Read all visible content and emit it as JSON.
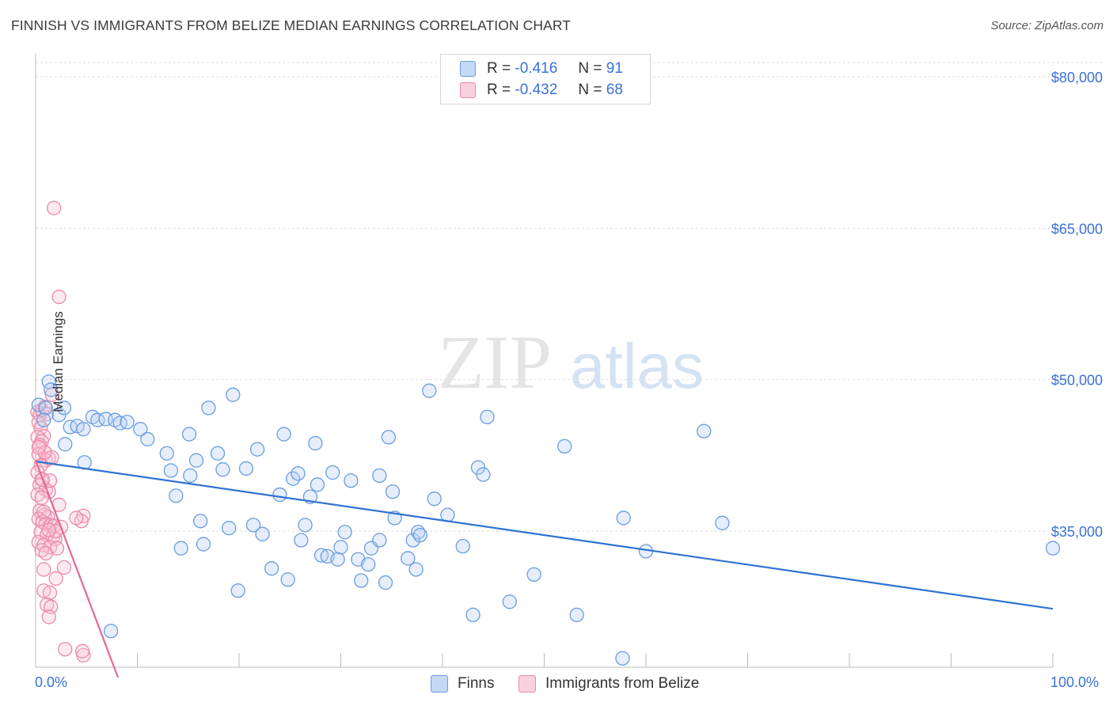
{
  "title": "FINNISH VS IMMIGRANTS FROM BELIZE MEDIAN EARNINGS CORRELATION CHART",
  "source": "Source: ZipAtlas.com",
  "watermark": {
    "part1": "ZIP",
    "part2": "atlas"
  },
  "colors": {
    "blue": "#6a9de0",
    "blue_line": "#2f72d4",
    "pink": "#ea8aaa",
    "pink_line": "#e4698f",
    "axis_label": "#3a72d8",
    "grid": "#dddddd"
  },
  "legend": {
    "rows": [
      {
        "r_label": "R =",
        "r_value": "-0.416",
        "n_label": "N =",
        "n_value": "91",
        "color": "blue"
      },
      {
        "r_label": "R =",
        "r_value": "-0.432",
        "n_label": "N =",
        "n_value": "68",
        "color": "pink"
      }
    ]
  },
  "bottom_legend": {
    "finns": "Finns",
    "belize": "Immigrants from Belize"
  },
  "chart_data": {
    "type": "scatter",
    "xlabel": "",
    "ylabel": "Median Earnings",
    "xlim": [
      0,
      100
    ],
    "ylim": [
      20000,
      82000
    ],
    "x_tick_labels": {
      "left": "0.0%",
      "right": "100.0%"
    },
    "y_ticks": [
      {
        "value": 80000,
        "label": "$80,000"
      },
      {
        "value": 65000,
        "label": "$65,000"
      },
      {
        "value": 50000,
        "label": "$50,000"
      },
      {
        "value": 35000,
        "label": "$35,000"
      }
    ],
    "series": [
      {
        "name": "Finns",
        "color": "blue",
        "trend": {
          "x0": 0,
          "y0": 41900,
          "x1": 100,
          "y1": 27300
        },
        "points": [
          [
            0.3,
            47500
          ],
          [
            1.0,
            47200
          ],
          [
            1.3,
            49800
          ],
          [
            0.8,
            46000
          ],
          [
            1.5,
            49000
          ],
          [
            2.3,
            46500
          ],
          [
            2.8,
            47200
          ],
          [
            3.4,
            45300
          ],
          [
            4.1,
            45400
          ],
          [
            4.7,
            45100
          ],
          [
            2.9,
            43600
          ],
          [
            4.8,
            41800
          ],
          [
            5.6,
            46300
          ],
          [
            6.1,
            46000
          ],
          [
            6.9,
            46100
          ],
          [
            7.8,
            46000
          ],
          [
            8.3,
            45700
          ],
          [
            9.0,
            45800
          ],
          [
            10.3,
            45100
          ],
          [
            11.0,
            44100
          ],
          [
            12.9,
            42700
          ],
          [
            13.3,
            41000
          ],
          [
            13.8,
            38500
          ],
          [
            14.3,
            33300
          ],
          [
            15.1,
            44600
          ],
          [
            15.2,
            40500
          ],
          [
            15.8,
            42000
          ],
          [
            16.2,
            36000
          ],
          [
            16.5,
            33700
          ],
          [
            17.0,
            47200
          ],
          [
            17.9,
            42700
          ],
          [
            18.4,
            41100
          ],
          [
            19.0,
            35300
          ],
          [
            19.4,
            48500
          ],
          [
            19.9,
            29100
          ],
          [
            20.7,
            41200
          ],
          [
            21.4,
            35600
          ],
          [
            21.8,
            43100
          ],
          [
            22.3,
            34700
          ],
          [
            23.2,
            31300
          ],
          [
            24.0,
            38600
          ],
          [
            24.4,
            44600
          ],
          [
            24.8,
            30200
          ],
          [
            25.3,
            40200
          ],
          [
            25.8,
            40700
          ],
          [
            26.1,
            34100
          ],
          [
            26.5,
            35600
          ],
          [
            27.0,
            38400
          ],
          [
            27.5,
            43700
          ],
          [
            27.7,
            39600
          ],
          [
            28.1,
            32600
          ],
          [
            28.7,
            32500
          ],
          [
            29.2,
            40800
          ],
          [
            29.7,
            32200
          ],
          [
            30.0,
            33400
          ],
          [
            30.4,
            34900
          ],
          [
            31.0,
            40000
          ],
          [
            31.7,
            32200
          ],
          [
            32.0,
            30100
          ],
          [
            32.7,
            31700
          ],
          [
            33.0,
            33300
          ],
          [
            33.8,
            40500
          ],
          [
            33.8,
            34100
          ],
          [
            34.4,
            29900
          ],
          [
            34.7,
            44300
          ],
          [
            35.1,
            38900
          ],
          [
            35.3,
            36300
          ],
          [
            36.6,
            32300
          ],
          [
            37.1,
            34100
          ],
          [
            37.4,
            31200
          ],
          [
            37.6,
            34900
          ],
          [
            37.8,
            34600
          ],
          [
            38.7,
            48900
          ],
          [
            39.2,
            38200
          ],
          [
            40.5,
            36600
          ],
          [
            42.0,
            33500
          ],
          [
            43.0,
            26700
          ],
          [
            43.5,
            41300
          ],
          [
            44.0,
            40600
          ],
          [
            44.4,
            46300
          ],
          [
            46.6,
            28000
          ],
          [
            49.0,
            30700
          ],
          [
            52.0,
            43400
          ],
          [
            53.2,
            26700
          ],
          [
            57.7,
            22400
          ],
          [
            57.8,
            36300
          ],
          [
            60.0,
            33000
          ],
          [
            65.7,
            44900
          ],
          [
            67.5,
            35800
          ],
          [
            100.0,
            33300
          ],
          [
            7.4,
            25100
          ]
        ]
      },
      {
        "name": "Immigrants from Belize",
        "color": "pink",
        "trend": {
          "x0": 0,
          "y0": 42000,
          "x1": 8.1,
          "y1": 20500
        },
        "points": [
          [
            0.2,
            46800
          ],
          [
            0.4,
            46500
          ],
          [
            0.6,
            47000
          ],
          [
            0.9,
            47300
          ],
          [
            1.1,
            46600
          ],
          [
            0.3,
            45800
          ],
          [
            0.5,
            45200
          ],
          [
            0.8,
            44400
          ],
          [
            0.2,
            44300
          ],
          [
            0.6,
            43900
          ],
          [
            0.4,
            43500
          ],
          [
            0.9,
            42800
          ],
          [
            0.3,
            42600
          ],
          [
            1.0,
            42000
          ],
          [
            1.3,
            42200
          ],
          [
            1.6,
            42300
          ],
          [
            0.5,
            41500
          ],
          [
            0.2,
            40800
          ],
          [
            0.7,
            40100
          ],
          [
            0.4,
            39600
          ],
          [
            1.0,
            39100
          ],
          [
            1.3,
            38900
          ],
          [
            0.2,
            38600
          ],
          [
            0.6,
            38300
          ],
          [
            2.3,
            37600
          ],
          [
            0.4,
            37000
          ],
          [
            0.9,
            36600
          ],
          [
            1.2,
            36400
          ],
          [
            0.3,
            36200
          ],
          [
            0.7,
            35900
          ],
          [
            1.0,
            35700
          ],
          [
            1.5,
            35600
          ],
          [
            1.8,
            35500
          ],
          [
            2.5,
            35400
          ],
          [
            0.5,
            34900
          ],
          [
            1.1,
            34600
          ],
          [
            1.7,
            34400
          ],
          [
            1.9,
            34200
          ],
          [
            0.3,
            33900
          ],
          [
            0.8,
            33600
          ],
          [
            1.4,
            33400
          ],
          [
            2.1,
            33300
          ],
          [
            0.6,
            33100
          ],
          [
            1.0,
            32800
          ],
          [
            2.8,
            31400
          ],
          [
            0.8,
            31200
          ],
          [
            0.8,
            29100
          ],
          [
            1.4,
            28900
          ],
          [
            1.1,
            27700
          ],
          [
            1.5,
            27500
          ],
          [
            1.3,
            26500
          ],
          [
            2.9,
            23300
          ],
          [
            4.7,
            22700
          ],
          [
            4.6,
            23100
          ],
          [
            1.8,
            67000
          ],
          [
            2.3,
            58200
          ],
          [
            1.6,
            48500
          ],
          [
            4.7,
            36500
          ],
          [
            4.5,
            36000
          ],
          [
            2.0,
            30300
          ],
          [
            0.6,
            40100
          ],
          [
            0.9,
            42800
          ],
          [
            1.4,
            40000
          ],
          [
            0.3,
            43300
          ],
          [
            2.0,
            35000
          ],
          [
            1.3,
            35100
          ],
          [
            0.8,
            36900
          ],
          [
            4.0,
            36300
          ]
        ]
      }
    ]
  }
}
